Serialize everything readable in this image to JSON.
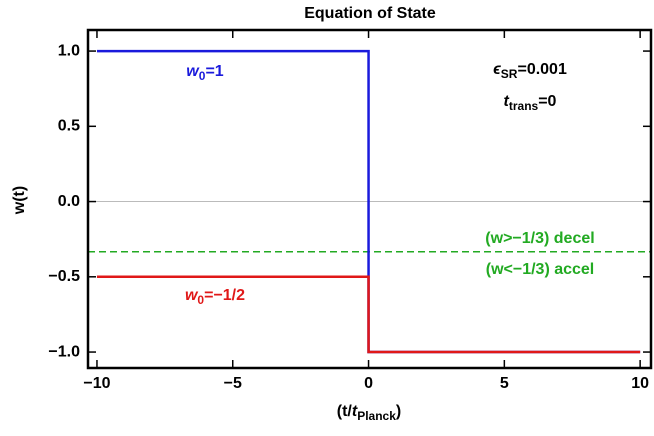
{
  "chart_data": {
    "type": "line",
    "title": "Equation of State",
    "y_label": "w(t)",
    "x_label": [
      "(t/",
      "t",
      "Planck",
      ")"
    ],
    "series": [
      {
        "name": "w0=1",
        "color": "#1a1adc",
        "x": [
          -10,
          0,
          0,
          10
        ],
        "values": [
          1,
          1,
          -1,
          -1
        ]
      },
      {
        "name": "w0=-1/2",
        "color": "#e01818",
        "x": [
          -10,
          0,
          0,
          10
        ],
        "values": [
          -0.5,
          -0.5,
          -1,
          -1
        ]
      }
    ],
    "hlines": [
      {
        "value": -0.3333,
        "color": "#22aa22",
        "style": "dashed"
      }
    ],
    "annotations": [
      {
        "text": "w",
        "sub": "0",
        "after": "=1"
      },
      {
        "text": "w",
        "sub": "0",
        "after": "=−1/2"
      },
      {
        "text": "ϵ",
        "sub": "SR",
        "after": "=0.001"
      },
      {
        "text": "t",
        "sub": "trans",
        "after": "=0"
      },
      {
        "text": "(w>−1/3) decel"
      },
      {
        "text": "(w<−1/3) accel"
      }
    ],
    "xlim": [
      -10.33,
      10.4
    ],
    "ylim": [
      -1.106,
      1.14
    ],
    "xticks": [
      {
        "value": -10,
        "label": "−10"
      },
      {
        "value": -5,
        "label": "−5"
      },
      0,
      5,
      10
    ],
    "yticks": [
      {
        "value": 1,
        "label": "1.0"
      },
      {
        "value": 0.5,
        "label": "0.5"
      },
      {
        "value": 0,
        "label": "0.0"
      },
      {
        "value": -0.5,
        "label": "−0.5"
      },
      {
        "value": -1,
        "label": "−1.0"
      }
    ],
    "grid": false
  }
}
